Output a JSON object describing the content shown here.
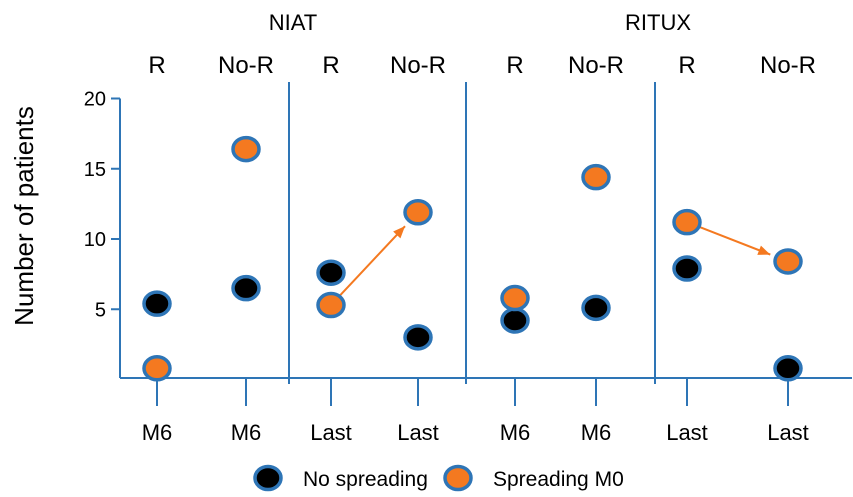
{
  "chart_data": {
    "type": "scatter",
    "ylabel": "Number of patients",
    "ylim": [
      0,
      20
    ],
    "yticks": [
      5,
      10,
      15,
      20
    ],
    "groups": [
      "NIAT",
      "RITUX"
    ],
    "response_labels": [
      "R",
      "No-R",
      "R",
      "No-R",
      "R",
      "No-R",
      "R",
      "No-R"
    ],
    "categories": [
      "M6",
      "M6",
      "Last",
      "Last",
      "M6",
      "M6",
      "Last",
      "Last"
    ],
    "series": [
      {
        "name": "No spreading",
        "values": [
          5.4,
          6.5,
          7.6,
          3.0,
          4.2,
          5.1,
          7.9,
          0.8
        ],
        "fill": "#000000"
      },
      {
        "name": "Spreading M0",
        "values": [
          0.8,
          16.4,
          5.3,
          11.9,
          5.8,
          14.4,
          11.2,
          8.4
        ],
        "fill": "#f47920"
      }
    ],
    "arrows": [
      {
        "from_category": 2,
        "from_value": 5.3,
        "to_category": 3,
        "to_value": 11.9
      },
      {
        "from_category": 6,
        "from_value": 11.2,
        "to_category": 7,
        "to_value": 8.4
      }
    ],
    "separators_after_category": [
      1,
      3,
      5
    ],
    "grid": false,
    "legend_position": "bottom-center"
  },
  "colors": {
    "axis": "#2e75b6",
    "marker_border": "#2e75b6",
    "arrow": "#f47920",
    "spreading": "#f47920",
    "no_spreading": "#000000"
  }
}
